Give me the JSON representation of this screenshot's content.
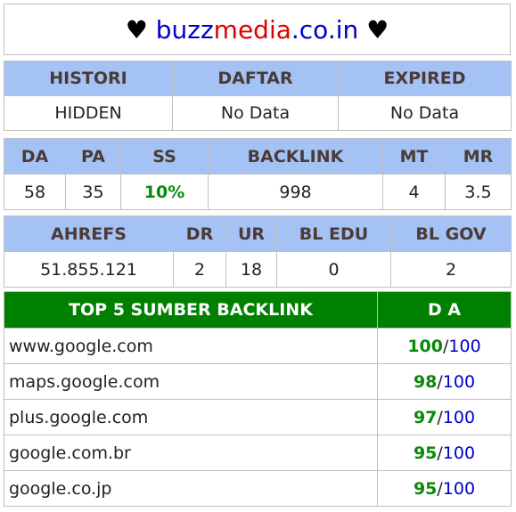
{
  "title": {
    "heart_left": "♥",
    "part1": "buzz",
    "part2": "media",
    "part3": ".co.in",
    "heart_right": "♥"
  },
  "status": {
    "headers": [
      "HISTORI",
      "DAFTAR",
      "EXPIRED"
    ],
    "values": [
      "HIDDEN",
      "No Data",
      "No Data"
    ]
  },
  "metrics": {
    "headers": [
      "DA",
      "PA",
      "SS",
      "BACKLINK",
      "MT",
      "MR"
    ],
    "values": [
      "58",
      "35",
      "10%",
      "998",
      "4",
      "3.5"
    ]
  },
  "ahrefs": {
    "headers": [
      "AHREFS",
      "DR",
      "UR",
      "BL EDU",
      "BL GOV"
    ],
    "values": [
      "51.855.121",
      "2",
      "18",
      "0",
      "2"
    ]
  },
  "backlinks": {
    "header_source": "TOP 5 SUMBER BACKLINK",
    "header_da": "D A",
    "separator": "/",
    "rows": [
      {
        "site": "www.google.com",
        "score": "100",
        "max": "100"
      },
      {
        "site": "maps.google.com",
        "score": "98",
        "max": "100"
      },
      {
        "site": "plus.google.com",
        "score": "97",
        "max": "100"
      },
      {
        "site": "google.com.br",
        "score": "95",
        "max": "100"
      },
      {
        "site": "google.co.jp",
        "score": "95",
        "max": "100"
      }
    ]
  },
  "colors": {
    "header_bg": "#a4c2f4",
    "header_text": "#4a3b37",
    "green_header": "#008000",
    "green_text": "#0a8a0a",
    "blue": "#0000cc",
    "red": "#e00000"
  }
}
